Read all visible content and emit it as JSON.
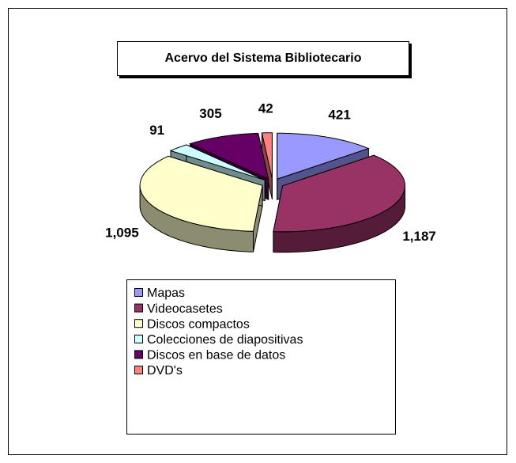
{
  "chart_data": {
    "type": "pie",
    "title": "Acervo del Sistema Bibliotecario",
    "categories": [
      "Mapas",
      "Videocasetes",
      "Discos compactos",
      "Colecciones de diapositivas",
      "Discos en base de datos",
      "DVD's"
    ],
    "values": [
      421,
      1187,
      1095,
      91,
      305,
      42
    ],
    "value_labels": [
      "421",
      "1,187",
      "1,095",
      "91",
      "305",
      "42"
    ],
    "colors": [
      "#9999ff",
      "#993366",
      "#ffffcc",
      "#ccffff",
      "#660066",
      "#ff8080"
    ],
    "legend": "bottom"
  }
}
